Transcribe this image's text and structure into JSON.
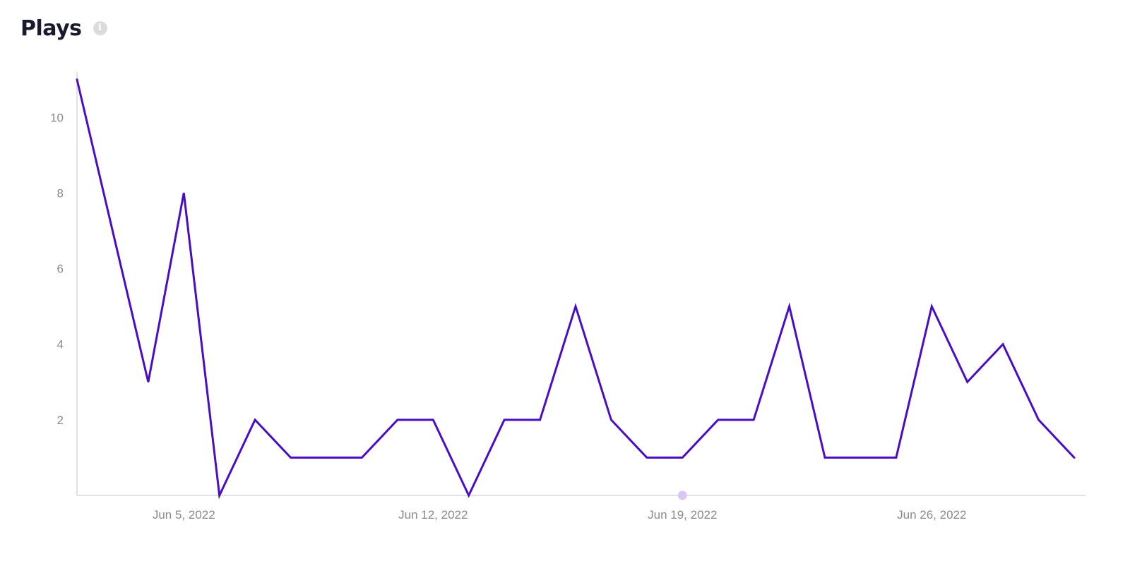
{
  "header": {
    "title": "Plays",
    "info_icon": "info-icon"
  },
  "colors": {
    "line": "#4a0dc4",
    "marker": "#d9c7f5",
    "axis": "#d8d8d8",
    "tick_text": "#8a8a8a"
  },
  "chart_data": {
    "type": "line",
    "title": "Plays",
    "xlabel": "",
    "ylabel": "",
    "x": [
      "2022-06-02",
      "2022-06-03",
      "2022-06-04",
      "2022-06-05",
      "2022-06-06",
      "2022-06-07",
      "2022-06-08",
      "2022-06-09",
      "2022-06-10",
      "2022-06-11",
      "2022-06-12",
      "2022-06-13",
      "2022-06-14",
      "2022-06-15",
      "2022-06-16",
      "2022-06-17",
      "2022-06-18",
      "2022-06-19",
      "2022-06-20",
      "2022-06-21",
      "2022-06-22",
      "2022-06-23",
      "2022-06-24",
      "2022-06-25",
      "2022-06-26",
      "2022-06-27",
      "2022-06-28",
      "2022-06-29",
      "2022-06-30"
    ],
    "series": [
      {
        "values": [
          11,
          7,
          3,
          8,
          0,
          2,
          1,
          1,
          1,
          2,
          2,
          0,
          2,
          2,
          5,
          2,
          1,
          1,
          2,
          2,
          5,
          1,
          1,
          1,
          5,
          3,
          4,
          2,
          1
        ]
      }
    ],
    "ylim": [
      0,
      11.2
    ],
    "y_ticks": [
      2,
      4,
      6,
      8,
      10
    ],
    "x_ticks": [
      {
        "date": "2022-06-05",
        "label": "Jun 5, 2022"
      },
      {
        "date": "2022-06-12",
        "label": "Jun 12, 2022"
      },
      {
        "date": "2022-06-19",
        "label": "Jun 19, 2022"
      },
      {
        "date": "2022-06-26",
        "label": "Jun 26, 2022"
      }
    ],
    "hover_marker_date": "2022-06-19",
    "grid": false,
    "legend": "none"
  }
}
